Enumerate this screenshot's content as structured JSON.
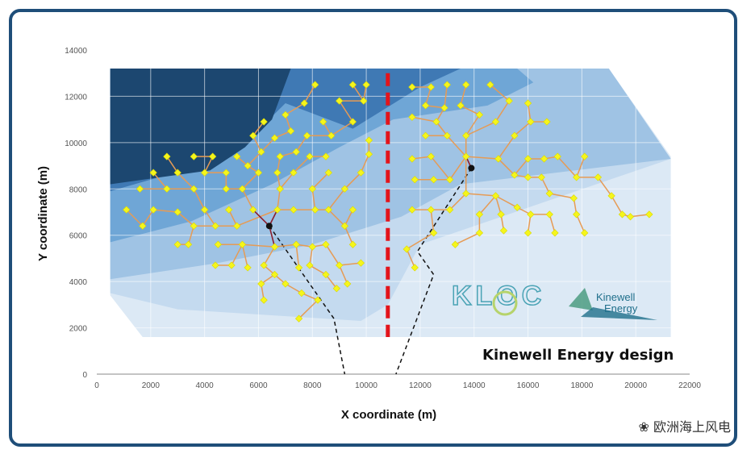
{
  "chart_data": {
    "type": "scatter",
    "xlabel": "X coordinate (m)",
    "ylabel": "Y coordinate (m)",
    "xlim": [
      0,
      22000
    ],
    "ylim": [
      0,
      14000
    ],
    "xticks": [
      0,
      2000,
      4000,
      6000,
      8000,
      10000,
      12000,
      14000,
      16000,
      18000,
      20000,
      22000
    ],
    "yticks": [
      0,
      2000,
      4000,
      6000,
      8000,
      10000,
      12000,
      14000
    ],
    "grid": true,
    "boundary_x": 10800,
    "substations": [
      {
        "x": 6400,
        "y": 6400
      },
      {
        "x": 13900,
        "y": 8900
      }
    ],
    "export_cables": [
      [
        [
          6400,
          6400
        ],
        [
          8800,
          2400
        ],
        [
          9200,
          0
        ]
      ],
      [
        [
          13900,
          8900
        ],
        [
          11900,
          5300
        ],
        [
          12500,
          4300
        ],
        [
          11100,
          0
        ]
      ]
    ],
    "turbines": [
      [
        1600,
        8000
      ],
      [
        1100,
        7100
      ],
      [
        1700,
        6400
      ],
      [
        2100,
        8700
      ],
      [
        2100,
        7100
      ],
      [
        2600,
        9400
      ],
      [
        2600,
        8000
      ],
      [
        3000,
        8700
      ],
      [
        3000,
        7000
      ],
      [
        3000,
        5600
      ],
      [
        3600,
        9400
      ],
      [
        3600,
        8000
      ],
      [
        3600,
        6400
      ],
      [
        3400,
        5600
      ],
      [
        4000,
        8700
      ],
      [
        4000,
        7100
      ],
      [
        4300,
        9400
      ],
      [
        4400,
        6400
      ],
      [
        4400,
        4700
      ],
      [
        4800,
        8700
      ],
      [
        4800,
        8000
      ],
      [
        4900,
        7100
      ],
      [
        4500,
        5600
      ],
      [
        5200,
        9400
      ],
      [
        5400,
        8000
      ],
      [
        5200,
        6400
      ],
      [
        5400,
        5600
      ],
      [
        5000,
        4700
      ],
      [
        5600,
        9000
      ],
      [
        5600,
        4600
      ],
      [
        5800,
        7100
      ],
      [
        5800,
        10300
      ],
      [
        6000,
        8700
      ],
      [
        6100,
        9600
      ],
      [
        6200,
        10900
      ],
      [
        6200,
        4700
      ],
      [
        6100,
        3900
      ],
      [
        6200,
        3200
      ],
      [
        6600,
        10200
      ],
      [
        6800,
        9400
      ],
      [
        6700,
        8700
      ],
      [
        6800,
        8000
      ],
      [
        6700,
        7100
      ],
      [
        6600,
        5500
      ],
      [
        6600,
        4300
      ],
      [
        7000,
        3900
      ],
      [
        7000,
        11200
      ],
      [
        7200,
        10500
      ],
      [
        7400,
        9600
      ],
      [
        7300,
        8700
      ],
      [
        7300,
        7100
      ],
      [
        7400,
        5600
      ],
      [
        7500,
        4600
      ],
      [
        7600,
        3500
      ],
      [
        7500,
        2400
      ],
      [
        7700,
        11700
      ],
      [
        7800,
        10300
      ],
      [
        7900,
        9400
      ],
      [
        8000,
        8000
      ],
      [
        8100,
        7100
      ],
      [
        8000,
        5500
      ],
      [
        7900,
        4700
      ],
      [
        8200,
        3200
      ],
      [
        8100,
        12500
      ],
      [
        8400,
        10900
      ],
      [
        8700,
        10300
      ],
      [
        8500,
        9400
      ],
      [
        8600,
        8700
      ],
      [
        8600,
        7100
      ],
      [
        8500,
        5600
      ],
      [
        8500,
        4300
      ],
      [
        8900,
        3700
      ],
      [
        9000,
        11800
      ],
      [
        9200,
        8000
      ],
      [
        9200,
        6400
      ],
      [
        9000,
        4700
      ],
      [
        9300,
        3900
      ],
      [
        9500,
        12500
      ],
      [
        9500,
        10900
      ],
      [
        9800,
        8700
      ],
      [
        9500,
        7100
      ],
      [
        9500,
        5600
      ],
      [
        9800,
        4800
      ],
      [
        9900,
        11800
      ],
      [
        10000,
        12500
      ],
      [
        10100,
        10100
      ],
      [
        10100,
        9500
      ],
      [
        11700,
        12400
      ],
      [
        11700,
        11100
      ],
      [
        11700,
        9300
      ],
      [
        11800,
        8400
      ],
      [
        11700,
        7100
      ],
      [
        11500,
        5400
      ],
      [
        11800,
        4600
      ],
      [
        12200,
        10300
      ],
      [
        12200,
        11600
      ],
      [
        12400,
        12400
      ],
      [
        12600,
        10900
      ],
      [
        12400,
        9400
      ],
      [
        12500,
        8400
      ],
      [
        12400,
        7100
      ],
      [
        12500,
        6100
      ],
      [
        12900,
        11500
      ],
      [
        13000,
        12500
      ],
      [
        13000,
        10300
      ],
      [
        13100,
        8400
      ],
      [
        13100,
        7100
      ],
      [
        13300,
        5600
      ],
      [
        13500,
        11600
      ],
      [
        13700,
        12500
      ],
      [
        13700,
        10300
      ],
      [
        13700,
        9400
      ],
      [
        13700,
        7800
      ],
      [
        14200,
        6900
      ],
      [
        14200,
        6100
      ],
      [
        14200,
        11200
      ],
      [
        14600,
        12500
      ],
      [
        14800,
        10900
      ],
      [
        14900,
        9300
      ],
      [
        14800,
        7700
      ],
      [
        15000,
        6900
      ],
      [
        15100,
        6200
      ],
      [
        15300,
        11800
      ],
      [
        15500,
        10300
      ],
      [
        15500,
        8600
      ],
      [
        15600,
        7200
      ],
      [
        16000,
        11700
      ],
      [
        16100,
        10900
      ],
      [
        16000,
        9300
      ],
      [
        16000,
        8500
      ],
      [
        16100,
        6900
      ],
      [
        16000,
        6100
      ],
      [
        16700,
        10900
      ],
      [
        16600,
        9300
      ],
      [
        16500,
        8500
      ],
      [
        16800,
        7800
      ],
      [
        16800,
        6900
      ],
      [
        17000,
        6100
      ],
      [
        17100,
        9400
      ],
      [
        17700,
        7600
      ],
      [
        17800,
        6900
      ],
      [
        17800,
        8500
      ],
      [
        18100,
        9400
      ],
      [
        18100,
        6100
      ],
      [
        18600,
        8500
      ],
      [
        19100,
        7700
      ],
      [
        19500,
        6900
      ],
      [
        19800,
        6800
      ],
      [
        20500,
        6900
      ]
    ],
    "credit": "Kinewell Energy design",
    "logo_left_text": "KLOC",
    "logo_right_text_1": "Kinewell",
    "logo_right_text_2": "Energy"
  },
  "watermark": "欧洲海上风电"
}
